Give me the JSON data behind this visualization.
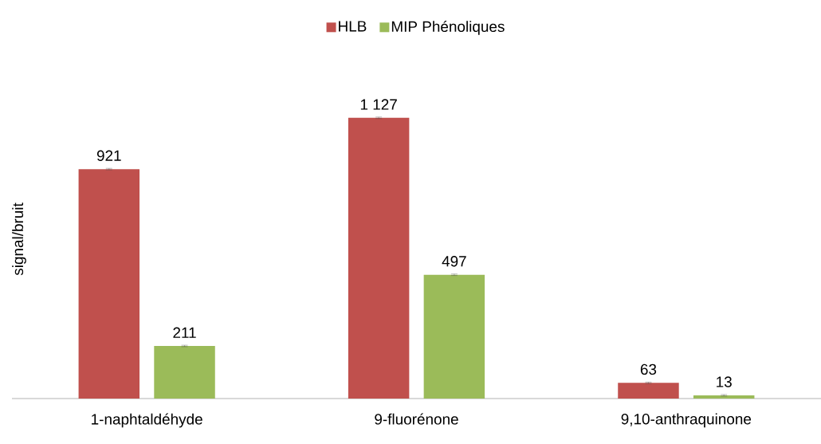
{
  "chart_data": {
    "type": "bar",
    "ylabel": "signal/bruit",
    "categories": [
      "1-naphtaldéhyde",
      "9-fluorénone",
      "9,10-anthraquinone"
    ],
    "series": [
      {
        "name": "HLB",
        "color": "#c0504d",
        "values": [
          921,
          1127,
          63
        ],
        "errors": [
          3,
          3,
          3
        ],
        "value_labels": [
          "921",
          "1 127",
          "63"
        ]
      },
      {
        "name": "MIP Phénoliques",
        "color": "#9bbb59",
        "values": [
          211,
          497,
          13
        ],
        "errors": [
          3,
          3,
          3
        ],
        "value_labels": [
          "211",
          "497",
          "13"
        ]
      }
    ],
    "tick_labels": "x",
    "legend": "top",
    "grid": false
  }
}
